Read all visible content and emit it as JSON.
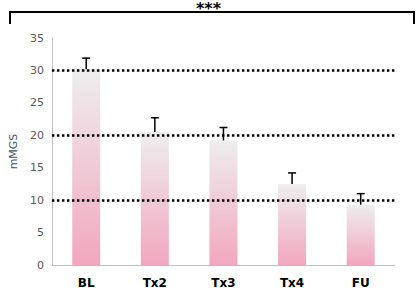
{
  "chart_data": {
    "type": "bar",
    "categories": [
      "BL",
      "Tx2",
      "Tx3",
      "Tx4",
      "FU"
    ],
    "values": [
      30.2,
      20.5,
      19.2,
      12.5,
      9.3
    ],
    "errors": [
      1.7,
      2.2,
      2.0,
      1.7,
      1.7
    ],
    "color": "#f2a7bf",
    "y_label": "mMGS",
    "ylim": [
      0,
      35
    ],
    "yticks": [
      0,
      5,
      10,
      15,
      20,
      25,
      30,
      35
    ],
    "reference_lines": [
      10,
      20,
      30
    ],
    "annotations": [
      {
        "text": "***",
        "from": "BL",
        "to": "FU"
      }
    ],
    "grid": false
  }
}
